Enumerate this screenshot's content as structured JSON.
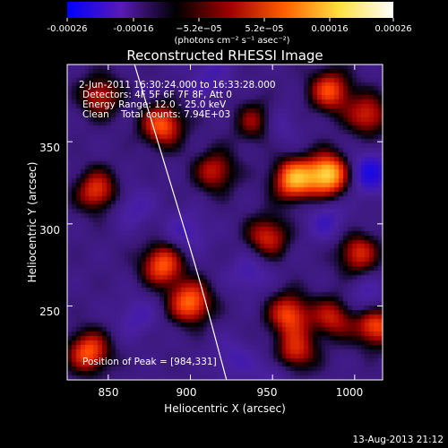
{
  "chart_data": {
    "type": "heatmap",
    "title": "Reconstructed RHESSI Image",
    "xlabel": "Heliocentric X (arcsec)",
    "ylabel": "Heliocentric Y (arcsec)",
    "xlim": [
      825,
      1017
    ],
    "ylim": [
      205,
      397
    ],
    "xticks": [
      "850",
      "900",
      "950",
      "1000"
    ],
    "yticks": [
      "250",
      "300",
      "350"
    ],
    "colorbar": {
      "ticks": [
        "-0.00026",
        "-0.00016",
        "−5.2e−05",
        "5.2e−05",
        "0.00016",
        "0.00026"
      ],
      "label": "(photons cm⁻² s⁻¹ asec⁻²)",
      "range": [
        -0.00026,
        0.00026
      ],
      "colormap": [
        "#0000ff",
        "#5a1ab4",
        "#000000",
        "#a00000",
        "#ff6000",
        "#ffe040",
        "#ffffff"
      ]
    },
    "annotations": {
      "time_range": "2-Jun-2011 16:30:24.000 to 16:33:28.000",
      "detectors": "Detectors: 4F 5F 6F 7F 8F, Att 0",
      "energy": "Energy Range: 12.0 - 25.0 keV",
      "clean": "Clean    Total counts: 7.94E+03",
      "peak": "Position of Peak = [984,331]"
    },
    "peak": [
      984,
      331
    ],
    "limb_curve": [
      [
        866,
        397
      ],
      [
        888,
        324
      ],
      [
        904,
        272
      ],
      [
        922,
        205
      ]
    ],
    "hot_spots": [
      {
        "x": 984,
        "y": 330,
        "v": 1.0
      },
      {
        "x": 963,
        "y": 327,
        "v": 0.85
      },
      {
        "x": 883,
        "y": 360,
        "v": 0.7
      },
      {
        "x": 843,
        "y": 320,
        "v": 0.6
      },
      {
        "x": 838,
        "y": 222,
        "v": 0.7
      },
      {
        "x": 900,
        "y": 252,
        "v": 0.75
      },
      {
        "x": 883,
        "y": 275,
        "v": 0.7
      },
      {
        "x": 960,
        "y": 245,
        "v": 0.65
      },
      {
        "x": 1002,
        "y": 282,
        "v": 0.55
      },
      {
        "x": 964,
        "y": 222,
        "v": 0.55
      },
      {
        "x": 1013,
        "y": 238,
        "v": 0.7
      },
      {
        "x": 985,
        "y": 381,
        "v": 0.65
      },
      {
        "x": 1008,
        "y": 366,
        "v": 0.55
      },
      {
        "x": 947,
        "y": 292,
        "v": 0.55
      },
      {
        "x": 915,
        "y": 332,
        "v": 0.5
      },
      {
        "x": 845,
        "y": 378,
        "v": 0.5
      },
      {
        "x": 940,
        "y": 362,
        "v": 0.45
      },
      {
        "x": 987,
        "y": 243,
        "v": 0.5
      }
    ],
    "cold_spots": [
      {
        "x": 1009,
        "y": 331,
        "v": 1.0
      },
      {
        "x": 1008,
        "y": 254,
        "v": 0.55
      },
      {
        "x": 983,
        "y": 302,
        "v": 0.55
      },
      {
        "x": 898,
        "y": 295,
        "v": 0.5
      },
      {
        "x": 936,
        "y": 270,
        "v": 0.5
      },
      {
        "x": 926,
        "y": 218,
        "v": 0.45
      },
      {
        "x": 867,
        "y": 243,
        "v": 0.45
      },
      {
        "x": 912,
        "y": 390,
        "v": 0.45
      },
      {
        "x": 953,
        "y": 360,
        "v": 0.45
      },
      {
        "x": 865,
        "y": 310,
        "v": 0.45
      },
      {
        "x": 950,
        "y": 208,
        "v": 0.4
      }
    ]
  },
  "footer": {
    "timestamp": "13-Aug-2013 21:12"
  }
}
